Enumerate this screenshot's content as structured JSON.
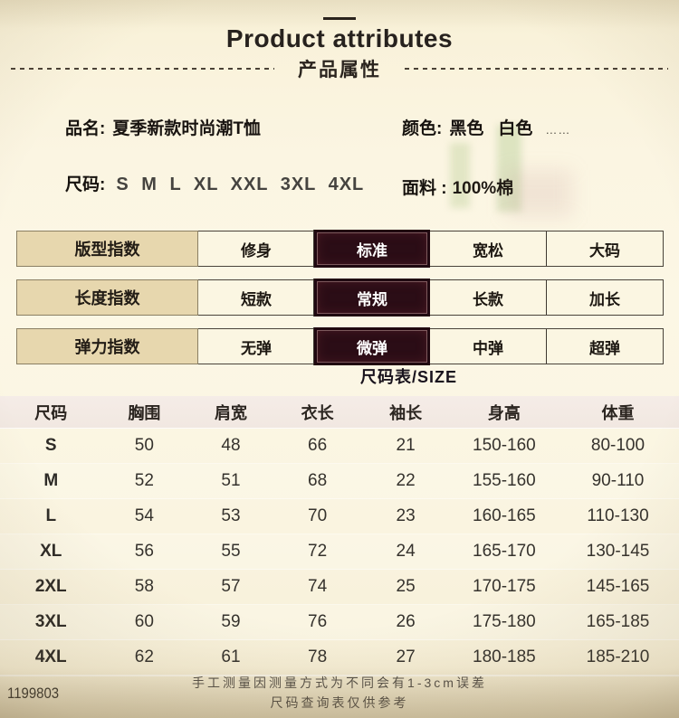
{
  "page": {
    "title": "Product attributes",
    "subtitle": "产品属性"
  },
  "product": {
    "name_label": "品名:",
    "name_value": "夏季新款时尚潮T恤",
    "color_label": "颜色:",
    "color_value_1": "黑色",
    "color_value_2": "白色",
    "color_more": "……",
    "size_label": "尺码:",
    "size_value": "S M L XL XXL 3XL 4XL",
    "fabric_label": "面料 :",
    "fabric_value": "100%棉"
  },
  "attributes": [
    {
      "label": "版型指数",
      "options": [
        "修身",
        "标准",
        "宽松",
        "大码"
      ],
      "selected": 1
    },
    {
      "label": "长度指数",
      "options": [
        "短款",
        "常规",
        "长款",
        "加长"
      ],
      "selected": 1
    },
    {
      "label": "弹力指数",
      "options": [
        "无弹",
        "微弹",
        "中弹",
        "超弹"
      ],
      "selected": 1
    }
  ],
  "size_table": {
    "caption": "尺码表/SIZE",
    "headers": [
      "尺码",
      "胸围",
      "肩宽",
      "衣长",
      "袖长",
      "身高",
      "体重"
    ],
    "rows": [
      [
        "S",
        "50",
        "48",
        "66",
        "21",
        "150-160",
        "80-100"
      ],
      [
        "M",
        "52",
        "51",
        "68",
        "22",
        "155-160",
        "90-110"
      ],
      [
        "L",
        "54",
        "53",
        "70",
        "23",
        "160-165",
        "110-130"
      ],
      [
        "XL",
        "56",
        "55",
        "72",
        "24",
        "165-170",
        "130-145"
      ],
      [
        "2XL",
        "58",
        "57",
        "74",
        "25",
        "170-175",
        "145-165"
      ],
      [
        "3XL",
        "60",
        "59",
        "76",
        "26",
        "175-180",
        "165-185"
      ],
      [
        "4XL",
        "62",
        "61",
        "78",
        "27",
        "180-185",
        "185-210"
      ]
    ]
  },
  "footer": {
    "code": "1199803",
    "note_line1": "手工测量因测量方式为不同会有1-3cm误差",
    "note_line2": "尺码查询表仅供参考"
  },
  "colors": {
    "background_cream": "#fbf5e2",
    "label_cell_tan": "#e7d7ae",
    "option_cell_cream": "#fbf6e2",
    "selected_cell_maroon": "#2b0d16",
    "selected_text": "#ffffff",
    "table_header_pink": "#f2e9e3",
    "text_dark": "#221c15"
  }
}
